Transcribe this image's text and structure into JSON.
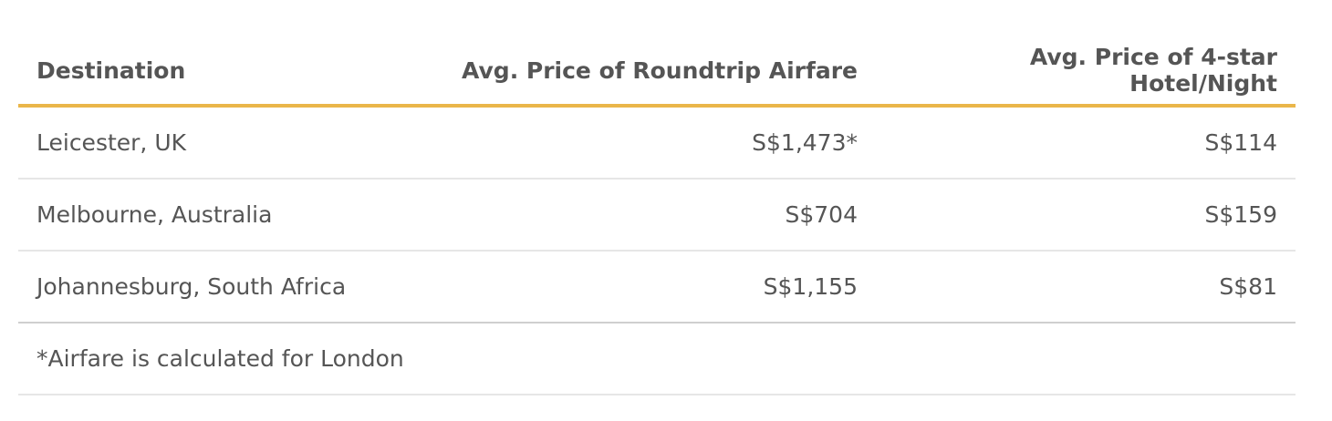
{
  "table": {
    "header": [
      "Destination",
      "Avg. Price of Roundtrip Airfare",
      "Avg. Price of 4-star Hotel/Night"
    ],
    "rows": [
      [
        "Leicester, UK",
        "S$1,473*",
        "S$114"
      ],
      [
        "Melbourne, Australia",
        "S$704",
        "S$159"
      ],
      [
        "Johannesburg, South Africa",
        "S$1,155",
        "S$81"
      ]
    ],
    "footnote": "*Airfare is calculated for London"
  }
}
